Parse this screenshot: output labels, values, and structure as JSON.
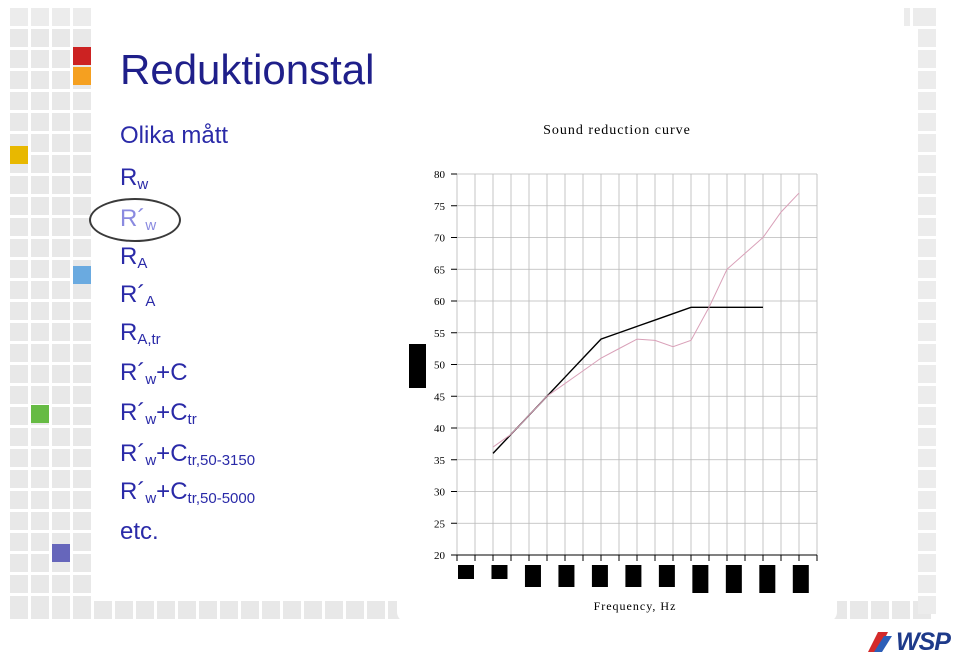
{
  "slide": {
    "title": "Reduktionstal",
    "items": [
      {
        "text": "Olika mått",
        "sub": ""
      },
      {
        "text": "R",
        "sub": "w"
      },
      {
        "text": "R´",
        "sub": "w"
      },
      {
        "text": "R",
        "sub": "A"
      },
      {
        "text": "R´",
        "sub": "A"
      },
      {
        "text": "R",
        "sub": "A,tr"
      },
      {
        "text": "R´",
        "sub": "w",
        "tail": "+C"
      },
      {
        "text": "R´",
        "sub": "w",
        "tail": "+C",
        "tailsub": "tr"
      },
      {
        "text": "R´",
        "sub": "w",
        "tail": "+C",
        "tailsub": "tr,50-3150"
      },
      {
        "text": "R´",
        "sub": "w",
        "tail": "+C",
        "tailsub": "tr,50-5000"
      },
      {
        "text": "etc.",
        "sub": ""
      }
    ]
  },
  "logo": {
    "text": "WSP"
  },
  "colors": {
    "title": "#1f1f8a",
    "text": "#2a2aa8",
    "highlighted_item": "#8a8ae0",
    "reference_curve": "#000000",
    "measured_curve": "#d9a0b8",
    "deco_red": "#cc2222",
    "deco_orange": "#f5a020",
    "deco_yellow": "#e8b800",
    "deco_blue": "#6aaae0",
    "deco_green": "#66bb44",
    "deco_purple": "#6666bb"
  },
  "chart_data": {
    "type": "line",
    "title": "Sound reduction curve",
    "xlabel": "Frequency, Hz",
    "ylabel": "",
    "ylim": [
      20,
      80
    ],
    "yticks": [
      20,
      25,
      30,
      35,
      40,
      45,
      50,
      55,
      60,
      65,
      70,
      75,
      80
    ],
    "x_bands": 21,
    "grid": true,
    "series": [
      {
        "values": [
          36,
          39,
          42,
          45,
          48,
          51,
          54,
          55,
          56,
          57,
          58,
          59,
          59,
          59,
          59,
          59
        ]
      },
      {
        "values": [
          37,
          39,
          42,
          45,
          47,
          49,
          51,
          52.5,
          54,
          53.8,
          52.8,
          53.8,
          59,
          65,
          67.5,
          70,
          74,
          77
        ]
      }
    ]
  }
}
